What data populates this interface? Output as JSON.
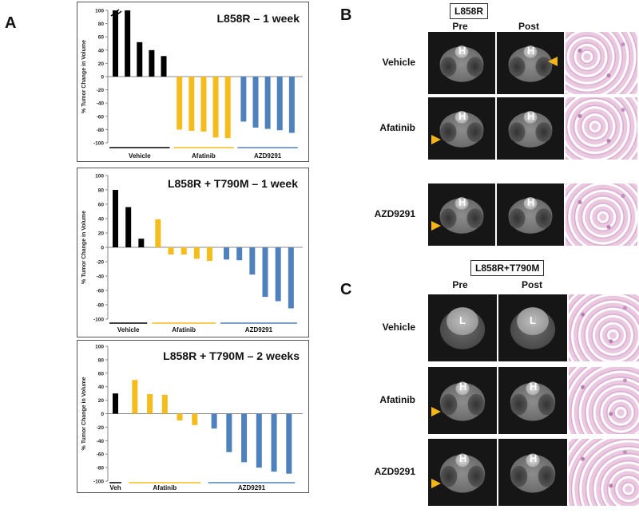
{
  "panels": {
    "A": {
      "letter": "A"
    },
    "B": {
      "letter": "B",
      "sample": "L858R",
      "col_pre": "Pre",
      "col_post": "Post",
      "rows": [
        {
          "label": "Vehicle",
          "pre": "H",
          "post": "H",
          "arrow": "post"
        },
        {
          "label": "Afatinib",
          "pre": "H",
          "post": "H",
          "arrow": "pre"
        },
        {
          "label": "AZD9291",
          "pre": "H",
          "post": "H",
          "arrow": "pre"
        }
      ]
    },
    "C": {
      "letter": "C",
      "sample": "L858R+T790M",
      "col_pre": "Pre",
      "col_post": "Post",
      "rows": [
        {
          "label": "Vehicle",
          "pre": "L",
          "post": "L",
          "arrow": "none"
        },
        {
          "label": "Afatinib",
          "pre": "H",
          "post": "H",
          "arrow": "pre"
        },
        {
          "label": "AZD9291",
          "pre": "H",
          "post": "H",
          "arrow": "pre"
        }
      ]
    }
  },
  "colors": {
    "vehicle": "#000000",
    "afatinib": "#f5bc1e",
    "azd9291": "#4f81bd",
    "arrow": "#f2b51c"
  },
  "chart_data": [
    {
      "type": "bar",
      "title": "L858R – 1 week",
      "ylabel": "% Tumor Change in Volume",
      "ylim": [
        -100,
        100
      ],
      "yticks": [
        -100,
        -80,
        -60,
        -40,
        -20,
        0,
        20,
        40,
        60,
        80,
        100
      ],
      "axis_break": true,
      "groups": [
        {
          "name": "Vehicle",
          "color": "#000000",
          "values": [
            100,
            100,
            52,
            40,
            31
          ]
        },
        {
          "name": "Afatinib",
          "color": "#f5bc1e",
          "values": [
            -80,
            -82,
            -83,
            -92,
            -93
          ]
        },
        {
          "name": "AZD9291",
          "color": "#4f81bd",
          "values": [
            -68,
            -77,
            -79,
            -81,
            -85
          ]
        }
      ]
    },
    {
      "type": "bar",
      "title": "L858R + T790M – 1 week",
      "ylabel": "% Tumor Change in Volume",
      "ylim": [
        -100,
        100
      ],
      "yticks": [
        -100,
        -80,
        -60,
        -40,
        -20,
        0,
        20,
        40,
        60,
        80,
        100
      ],
      "axis_break": false,
      "groups": [
        {
          "name": "Vehicle",
          "color": "#000000",
          "values": [
            80,
            56,
            12
          ]
        },
        {
          "name": "Afatinib",
          "color": "#f5bc1e",
          "values": [
            39,
            -10,
            -10,
            -16,
            -19
          ]
        },
        {
          "name": "AZD9291",
          "color": "#4f81bd",
          "values": [
            -17,
            -18,
            -38,
            -69,
            -75,
            -85
          ]
        }
      ]
    },
    {
      "type": "bar",
      "title": "L858R + T790M – 2 weeks",
      "ylabel": "% Tumor Change in Volume",
      "ylim": [
        -100,
        100
      ],
      "yticks": [
        -100,
        -80,
        -60,
        -40,
        -20,
        0,
        20,
        40,
        60,
        80,
        100
      ],
      "axis_break": false,
      "groups": [
        {
          "name": "Veh",
          "color": "#000000",
          "values": [
            30
          ]
        },
        {
          "name": "Afatinib",
          "color": "#f5bc1e",
          "values": [
            50,
            29,
            28,
            -10,
            -17
          ]
        },
        {
          "name": "AZD9291",
          "color": "#4f81bd",
          "values": [
            -22,
            -57,
            -72,
            -80,
            -86,
            -89
          ]
        }
      ]
    }
  ]
}
